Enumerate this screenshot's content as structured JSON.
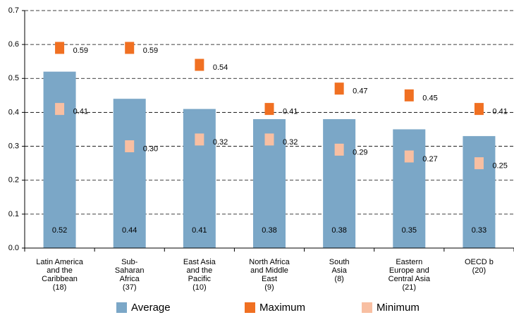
{
  "chart_data": {
    "type": "bar",
    "categories": [
      "Latin America\nand the\nCaribbean\n(18)",
      "Sub-\nSaharan\nAfrica\n(37)",
      "East Asia\nand the\nPacific\n(10)",
      "North Africa\nand Middle\nEast\n(9)",
      "South\nAsia\n(8)",
      "Eastern\nEurope and\nCentral Asia\n(21)",
      "OECD b\n(20)"
    ],
    "series": [
      {
        "name": "Average",
        "style": "bar",
        "color": "#7ba7c7",
        "values": [
          0.52,
          0.44,
          0.41,
          0.38,
          0.38,
          0.35,
          0.33
        ],
        "value_labels": [
          "0.52",
          "0.44",
          "0.41",
          "0.38",
          "0.38",
          "0.35",
          "0.33"
        ]
      },
      {
        "name": "Maximum",
        "style": "marker",
        "color": "#f07022",
        "values": [
          0.59,
          0.59,
          0.54,
          0.41,
          0.47,
          0.45,
          0.41
        ],
        "value_labels": [
          "0.59",
          "0.59",
          "0.54",
          "0.41",
          "0.47",
          "0.45",
          "0.41"
        ]
      },
      {
        "name": "Minimum",
        "style": "marker",
        "color": "#f8bfa2",
        "values": [
          0.41,
          0.3,
          0.32,
          0.32,
          0.29,
          0.27,
          0.25
        ],
        "value_labels": [
          "0.41",
          "0.30",
          "0.32",
          "0.32",
          "0.29",
          "0.27",
          "0.25"
        ]
      }
    ],
    "ylim": [
      0,
      0.7
    ],
    "yticks": [
      {
        "value": 0,
        "label": "0.0"
      },
      0.1,
      0.2,
      0.3,
      0.4,
      0.5,
      0.6,
      0.7
    ],
    "grid": true
  }
}
